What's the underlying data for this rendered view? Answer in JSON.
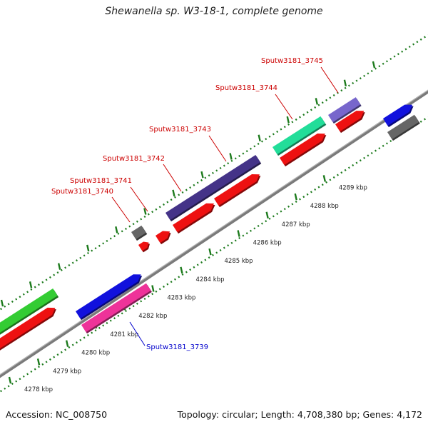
{
  "title": "Shewanella sp. W3-18-1, complete genome",
  "footer": {
    "accession": "Accession: NC_008750",
    "summary": "Topology: circular; Length: 4,708,380 bp; Genes: 4,172"
  },
  "colors": {
    "backbone": "#8a8a8a",
    "tick_green": "#1c7a1c",
    "label_red": "#cc0000",
    "label_blue": "#0000cc"
  },
  "scale_ticks": [
    {
      "label": "4278 kbp",
      "kbp": 4278
    },
    {
      "label": "4279 kbp",
      "kbp": 4279
    },
    {
      "label": "4280 kbp",
      "kbp": 4280
    },
    {
      "label": "4281 kbp",
      "kbp": 4281
    },
    {
      "label": "4282 kbp",
      "kbp": 4282
    },
    {
      "label": "4283 kbp",
      "kbp": 4283
    },
    {
      "label": "4284 kbp",
      "kbp": 4284
    },
    {
      "label": "4285 kbp",
      "kbp": 4285
    },
    {
      "label": "4286 kbp",
      "kbp": 4286
    },
    {
      "label": "4287 kbp",
      "kbp": 4287
    },
    {
      "label": "4288 kbp",
      "kbp": 4288
    },
    {
      "label": "4289 kbp",
      "kbp": 4289
    }
  ],
  "gene_labels": [
    {
      "text": "Sputw3181_3739",
      "color": "blue"
    },
    {
      "text": "Sputw3181_3740",
      "color": "red"
    },
    {
      "text": "Sputw3181_3741",
      "color": "red"
    },
    {
      "text": "Sputw3181_3742",
      "color": "red"
    },
    {
      "text": "Sputw3181_3743",
      "color": "red"
    },
    {
      "text": "Sputw3181_3744",
      "color": "red"
    },
    {
      "text": "Sputw3181_3745",
      "color": "red"
    }
  ],
  "feature_colors": {
    "green": "#33cc33",
    "red": "#ee1111",
    "blue": "#1111dd",
    "pink": "#ee3399",
    "gray": "#666666",
    "navy": "#443388",
    "mint": "#22dd99",
    "lavender": "#7766cc"
  }
}
